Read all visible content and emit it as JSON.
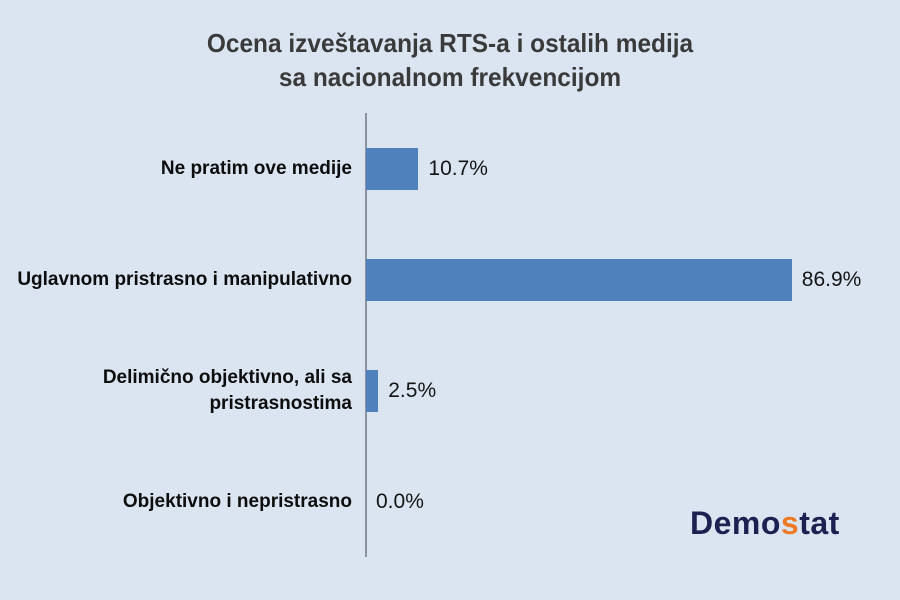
{
  "title": {
    "line1": "Ocena izveštavanja RTS-a i ostalih medija",
    "line2": "sa nacionalnom frekvencijom"
  },
  "chart_data": {
    "type": "bar",
    "orientation": "horizontal",
    "title": "Ocena izveštavanja RTS-a i ostalih medija sa nacionalnom frekvencijom",
    "categories": [
      "Ne pratim ove medije",
      "Uglavnom pristrasno i manipulativno",
      "Delimično objektivno, ali sa pristrasnostima",
      "Objektivno i nepristrasno"
    ],
    "values": [
      10.7,
      86.9,
      2.5,
      0.0
    ],
    "value_labels": [
      "10.7%",
      "86.9%",
      "2.5%",
      "0.0%"
    ],
    "xlabel": "",
    "ylabel": "",
    "xlim": [
      0,
      100
    ],
    "grid": false,
    "legend": false,
    "bar_color": "#4f81bd",
    "background_color": "#dbe5f1",
    "axis_color": "#8c939c"
  },
  "branding": {
    "logo_part1": "Demo",
    "logo_accent": "s",
    "logo_part2": "tat",
    "navy_color": "#1b2150",
    "accent_color": "#ee7a23"
  }
}
